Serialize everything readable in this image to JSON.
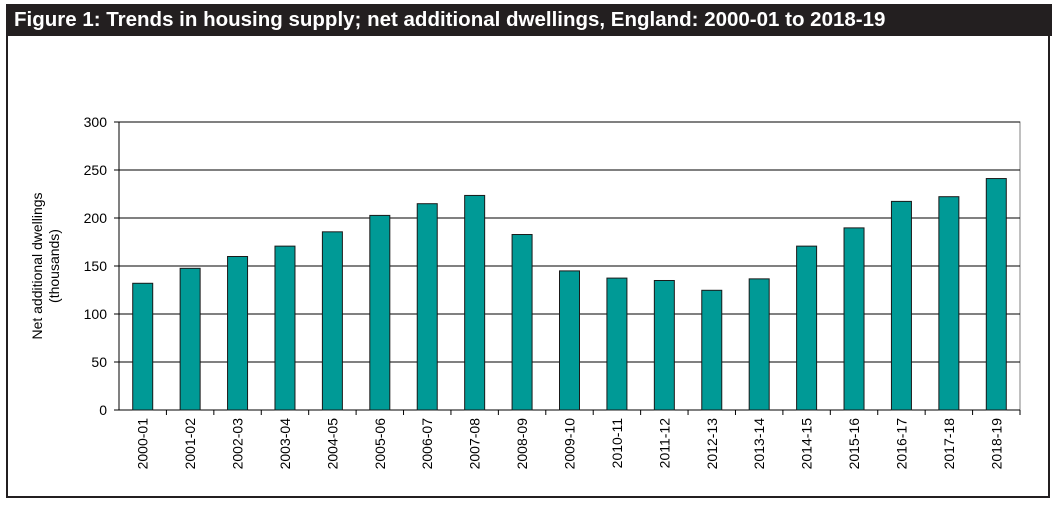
{
  "title": "Figure 1: Trends in housing supply; net additional dwellings, England: 2000-01 to 2018-19",
  "chart_data": {
    "type": "bar",
    "title": "Figure 1: Trends in housing supply; net additional dwellings, England: 2000-01 to 2018-19",
    "xlabel": "",
    "ylabel": "Net additional dwellings (thousands)",
    "ylabel_lines": [
      "Net additional dwellings",
      "(thousands)"
    ],
    "ylim": [
      0,
      300
    ],
    "yticks": [
      0,
      50,
      100,
      150,
      200,
      250,
      300
    ],
    "grid": true,
    "bar_color": "#009a96",
    "categories": [
      "2000-01",
      "2001-02",
      "2002-03",
      "2003-04",
      "2004-05",
      "2005-06",
      "2006-07",
      "2007-08",
      "2008-09",
      "2009-10",
      "2010-11",
      "2011-12",
      "2012-13",
      "2013-14",
      "2014-15",
      "2015-16",
      "2016-17",
      "2017-18",
      "2018-19"
    ],
    "values": [
      132.0,
      147.6,
      159.9,
      170.7,
      185.6,
      202.7,
      214.9,
      223.5,
      182.8,
      144.9,
      137.4,
      134.9,
      124.7,
      136.6,
      170.7,
      189.7,
      217.3,
      222.2,
      241.1
    ]
  }
}
